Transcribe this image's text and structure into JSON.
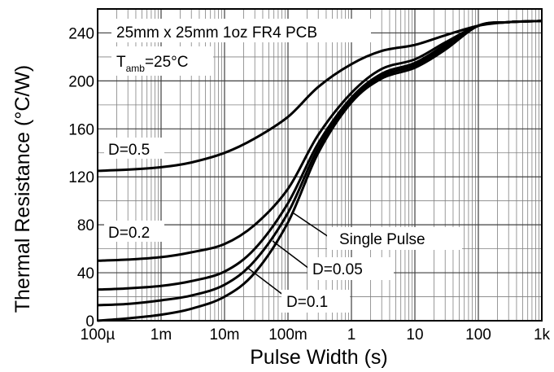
{
  "chart_data": {
    "type": "line",
    "title": "",
    "xlabel": "Pulse Width (s)",
    "ylabel": "Thermal Resistance (°C/W)",
    "x_scale": "log",
    "x_unit": "s",
    "xlim": [
      0.0001,
      1000
    ],
    "ylim": [
      0,
      260
    ],
    "grid": true,
    "x_ticks": [
      {
        "label": "100µ",
        "value": 0.0001
      },
      {
        "label": "1m",
        "value": 0.001
      },
      {
        "label": "10m",
        "value": 0.01
      },
      {
        "label": "100m",
        "value": 0.1
      },
      {
        "label": "1",
        "value": 1
      },
      {
        "label": "10",
        "value": 10
      },
      {
        "label": "100",
        "value": 100
      },
      {
        "label": "1k",
        "value": 1000
      }
    ],
    "y_ticks": [
      {
        "label": "0",
        "value": 0
      },
      {
        "label": "40",
        "value": 40
      },
      {
        "label": "80",
        "value": 80
      },
      {
        "label": "120",
        "value": 120
      },
      {
        "label": "160",
        "value": 160
      },
      {
        "label": "200",
        "value": 200
      },
      {
        "label": "240",
        "value": 240
      }
    ],
    "annotations": {
      "pcb": "25mm x 25mm 1oz FR4 PCB",
      "tamb_main": "T",
      "tamb_sub": "amb",
      "tamb_value": "=25°C"
    },
    "series": [
      {
        "name": "D=0.5",
        "x": [
          0.0001,
          0.0003,
          0.001,
          0.003,
          0.01,
          0.03,
          0.1,
          0.3,
          1,
          3,
          10,
          30,
          100,
          300,
          1000
        ],
        "values": [
          125,
          126,
          128,
          132,
          140,
          152,
          170,
          195,
          214,
          225,
          230,
          238,
          246,
          249,
          250
        ]
      },
      {
        "name": "D=0.2",
        "x": [
          0.0001,
          0.0003,
          0.001,
          0.003,
          0.01,
          0.03,
          0.1,
          0.3,
          1,
          3,
          10,
          30,
          100,
          300,
          1000
        ],
        "values": [
          50,
          51,
          53,
          57,
          64,
          80,
          110,
          155,
          190,
          210,
          218,
          232,
          246,
          249,
          250
        ]
      },
      {
        "name": "D=0.1",
        "x": [
          0.0001,
          0.0003,
          0.001,
          0.003,
          0.01,
          0.03,
          0.1,
          0.3,
          1,
          3,
          10,
          30,
          100,
          300,
          1000
        ],
        "values": [
          26,
          27,
          29,
          33,
          41,
          60,
          98,
          148,
          186,
          206,
          215,
          230,
          246,
          249,
          250
        ]
      },
      {
        "name": "D=0.05",
        "x": [
          0.0001,
          0.0003,
          0.001,
          0.003,
          0.01,
          0.03,
          0.1,
          0.3,
          1,
          3,
          10,
          30,
          100,
          300,
          1000
        ],
        "values": [
          13,
          14,
          17,
          21,
          30,
          50,
          90,
          144,
          184,
          204,
          213,
          228,
          246,
          249,
          250
        ]
      },
      {
        "name": "Single Pulse",
        "x": [
          0.0001,
          0.0003,
          0.001,
          0.003,
          0.01,
          0.03,
          0.1,
          0.3,
          1,
          3,
          10,
          30,
          100,
          300,
          1000
        ],
        "values": [
          0,
          2,
          5,
          10,
          20,
          40,
          82,
          140,
          182,
          202,
          211,
          226,
          246,
          249,
          250
        ]
      }
    ],
    "labels": {
      "d05": "D=0.5",
      "d02": "D=0.2",
      "single": "Single Pulse",
      "d005": "D=0.05",
      "d01": "D=0.1"
    },
    "colors": {
      "line": "#000000",
      "grid": "#808080",
      "background": "#ffffff"
    }
  }
}
